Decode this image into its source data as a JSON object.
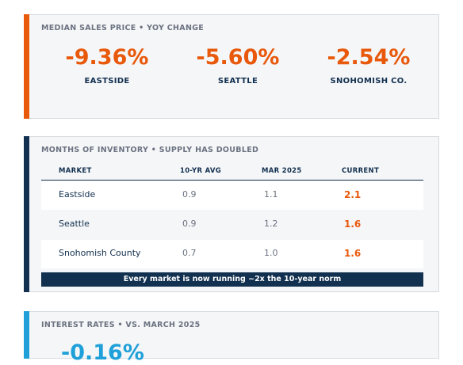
{
  "colors": {
    "accent_orange": "#e8590c",
    "navy": "#12304f",
    "blue": "#1fa0d8"
  },
  "card_prices": {
    "title": "MEDIAN SALES PRICE  •  YOY CHANGE",
    "stats": [
      {
        "value": "-9.36%",
        "label": "EASTSIDE"
      },
      {
        "value": "-5.60%",
        "label": "SEATTLE"
      },
      {
        "value": "-2.54%",
        "label": "SNOHOMISH CO."
      }
    ]
  },
  "card_inventory": {
    "title": "MONTHS OF INVENTORY  •  SUPPLY HAS DOUBLED",
    "headers": [
      "MARKET",
      "10-YR AVG",
      "MAR 2025",
      "CURRENT"
    ],
    "rows": [
      [
        "Eastside",
        "0.9",
        "1.1",
        "2.1"
      ],
      [
        "Seattle",
        "0.9",
        "1.2",
        "1.6"
      ],
      [
        "Snohomish County",
        "0.7",
        "1.0",
        "1.6"
      ]
    ],
    "banner": "Every market is now running ~2x the 10-year norm"
  },
  "card_rates": {
    "title": "INTEREST RATES  •  VS. MARCH 2025",
    "value": "-0.16%"
  }
}
